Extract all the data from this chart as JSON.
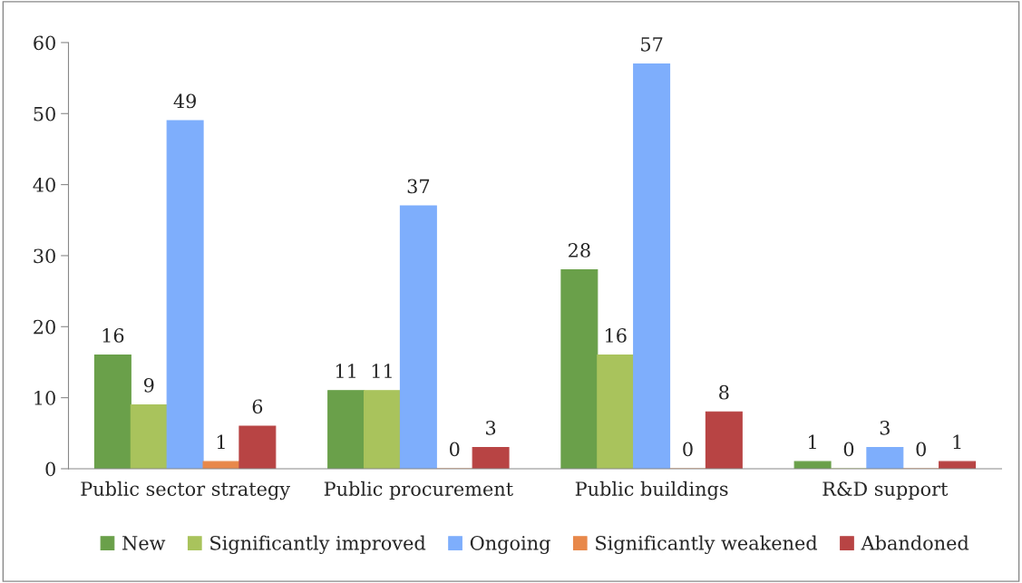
{
  "chart_data": {
    "type": "bar",
    "categories": [
      "Public sector strategy",
      "Public procurement",
      "Public buildings",
      "R&D support"
    ],
    "series": [
      {
        "name": "New",
        "color": "#6aa04a",
        "values": [
          16,
          11,
          28,
          1
        ]
      },
      {
        "name": "Significantly improved",
        "color": "#a9c35c",
        "values": [
          9,
          11,
          16,
          0
        ]
      },
      {
        "name": "Ongoing",
        "color": "#7eaefc",
        "values": [
          49,
          37,
          57,
          3
        ]
      },
      {
        "name": "Significantly weakened",
        "color": "#e8884a",
        "values": [
          1,
          0,
          0,
          0
        ]
      },
      {
        "name": "Abandoned",
        "color": "#b84444",
        "values": [
          6,
          3,
          8,
          1
        ]
      }
    ],
    "ylim": [
      0,
      60
    ],
    "yticks": [
      0,
      10,
      20,
      30,
      40,
      50,
      60
    ],
    "data_labels": true,
    "legend": "bottom",
    "grid": false
  }
}
